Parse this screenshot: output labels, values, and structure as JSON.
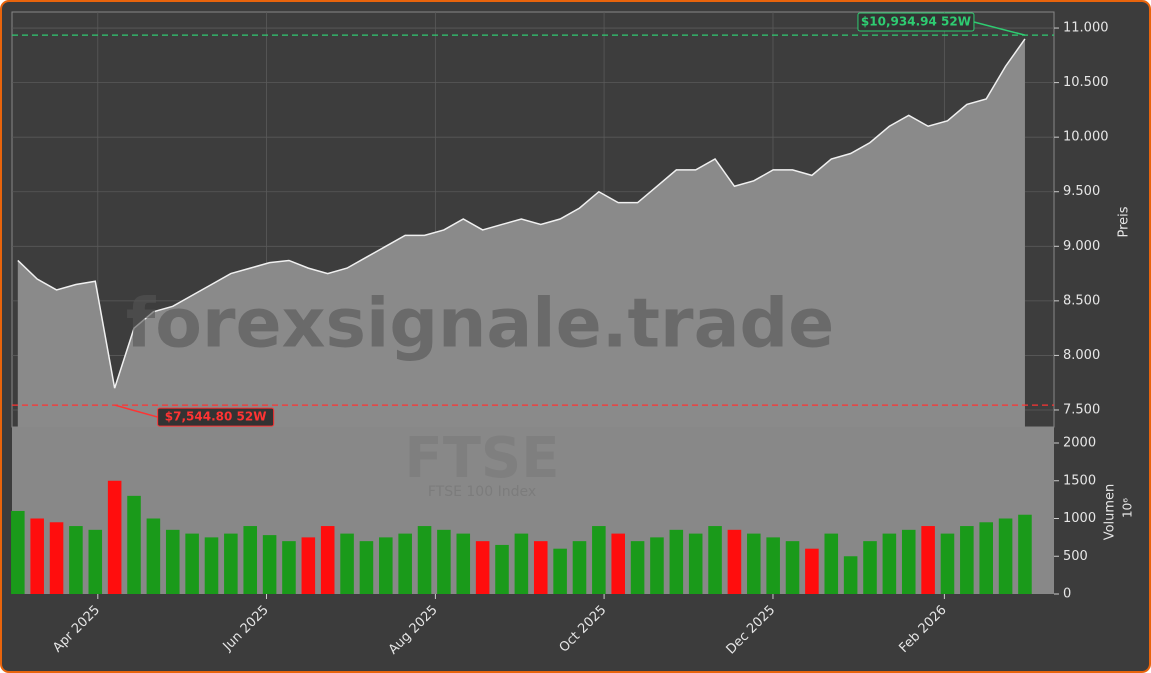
{
  "chart_data": {
    "type": "area",
    "watermark": "forexsignale.trade",
    "symbol": "FTSE",
    "subtitle": "FTSE 100 Index",
    "y_label": "Preis",
    "x": [
      0.3,
      1.3,
      2.3,
      3.3,
      4.3,
      5.3,
      6.3,
      7.3,
      8.3,
      9.3,
      10.3,
      11.3,
      12.3,
      13.3,
      14.3,
      15.3,
      16.3,
      17.3,
      18.3,
      19.3,
      20.3,
      21.3,
      22.3,
      23.3,
      24.3,
      25.3,
      26.3,
      27.3,
      28.3,
      29.3,
      30.3,
      31.3,
      32.3,
      33.3,
      34.3,
      35.3,
      36.3,
      37.3,
      38.3,
      39.3,
      40.3,
      41.3,
      42.3,
      43.3,
      44.3,
      45.3,
      46.3,
      47.3,
      48.3,
      49.3,
      50.3,
      51.3,
      52.3
    ],
    "xlim": [
      0,
      53.8
    ],
    "xticks": [
      {
        "value": 4.43,
        "label": "Apr 2025"
      },
      {
        "value": 13.14,
        "label": "Jun 2025"
      },
      {
        "value": 21.86,
        "label": "Aug 2025"
      },
      {
        "value": 30.57,
        "label": "Oct 2025"
      },
      {
        "value": 39.29,
        "label": "Dec 2025"
      },
      {
        "value": 48.14,
        "label": "Feb 2026"
      }
    ],
    "series": [
      {
        "name": "FTSE",
        "color": "#8a8a8a",
        "values": [
          8870,
          8700,
          8600,
          8650,
          8680,
          7700,
          8250,
          8400,
          8450,
          8550,
          8650,
          8750,
          8800,
          8850,
          8870,
          8800,
          8750,
          8800,
          8900,
          9000,
          9100,
          9100,
          9150,
          9250,
          9150,
          9200,
          9250,
          9200,
          9250,
          9350,
          9500,
          9400,
          9400,
          9550,
          9700,
          9700,
          9800,
          9550,
          9600,
          9700,
          9700,
          9650,
          9800,
          9850,
          9950,
          10100,
          10200,
          10100,
          10150,
          10300,
          10350,
          10650,
          10900
        ]
      }
    ],
    "ylim": [
      7344,
      11147
    ],
    "yticks": [
      {
        "value": 7500,
        "label": "7.500"
      },
      {
        "value": 8000,
        "label": "8.000"
      },
      {
        "value": 8500,
        "label": "8.500"
      },
      {
        "value": 9000,
        "label": "9.000"
      },
      {
        "value": 9500,
        "label": "9.500"
      },
      {
        "value": 10000,
        "label": "10.000"
      },
      {
        "value": 10500,
        "label": "10.500"
      },
      {
        "value": 11000,
        "label": "11.000"
      }
    ],
    "grid": true,
    "annotations": [
      {
        "text": "$10,934.94 52W",
        "value": 10934.94,
        "color": "#2ecc71"
      },
      {
        "text": "$7,544.80 52W",
        "value": 7544.8,
        "color": "#ff3333"
      }
    ],
    "volume": {
      "label": "Volumen",
      "unit": "10⁶",
      "up_color": "#1a9a1a",
      "down_color": "#ff0d0d",
      "values": [
        1100,
        1000,
        950,
        900,
        850,
        1500,
        1300,
        1000,
        850,
        800,
        750,
        800,
        900,
        780,
        700,
        750,
        900,
        800,
        700,
        750,
        800,
        900,
        850,
        800,
        700,
        650,
        800,
        700,
        600,
        700,
        900,
        800,
        700,
        750,
        850,
        800,
        900,
        850,
        800,
        750,
        700,
        600,
        800,
        500,
        700,
        800,
        850,
        900,
        800,
        900,
        950,
        1000,
        1050
      ],
      "ylim": [
        0,
        2212
      ],
      "yticks": [
        0,
        500,
        1000,
        1500,
        2000
      ]
    }
  }
}
